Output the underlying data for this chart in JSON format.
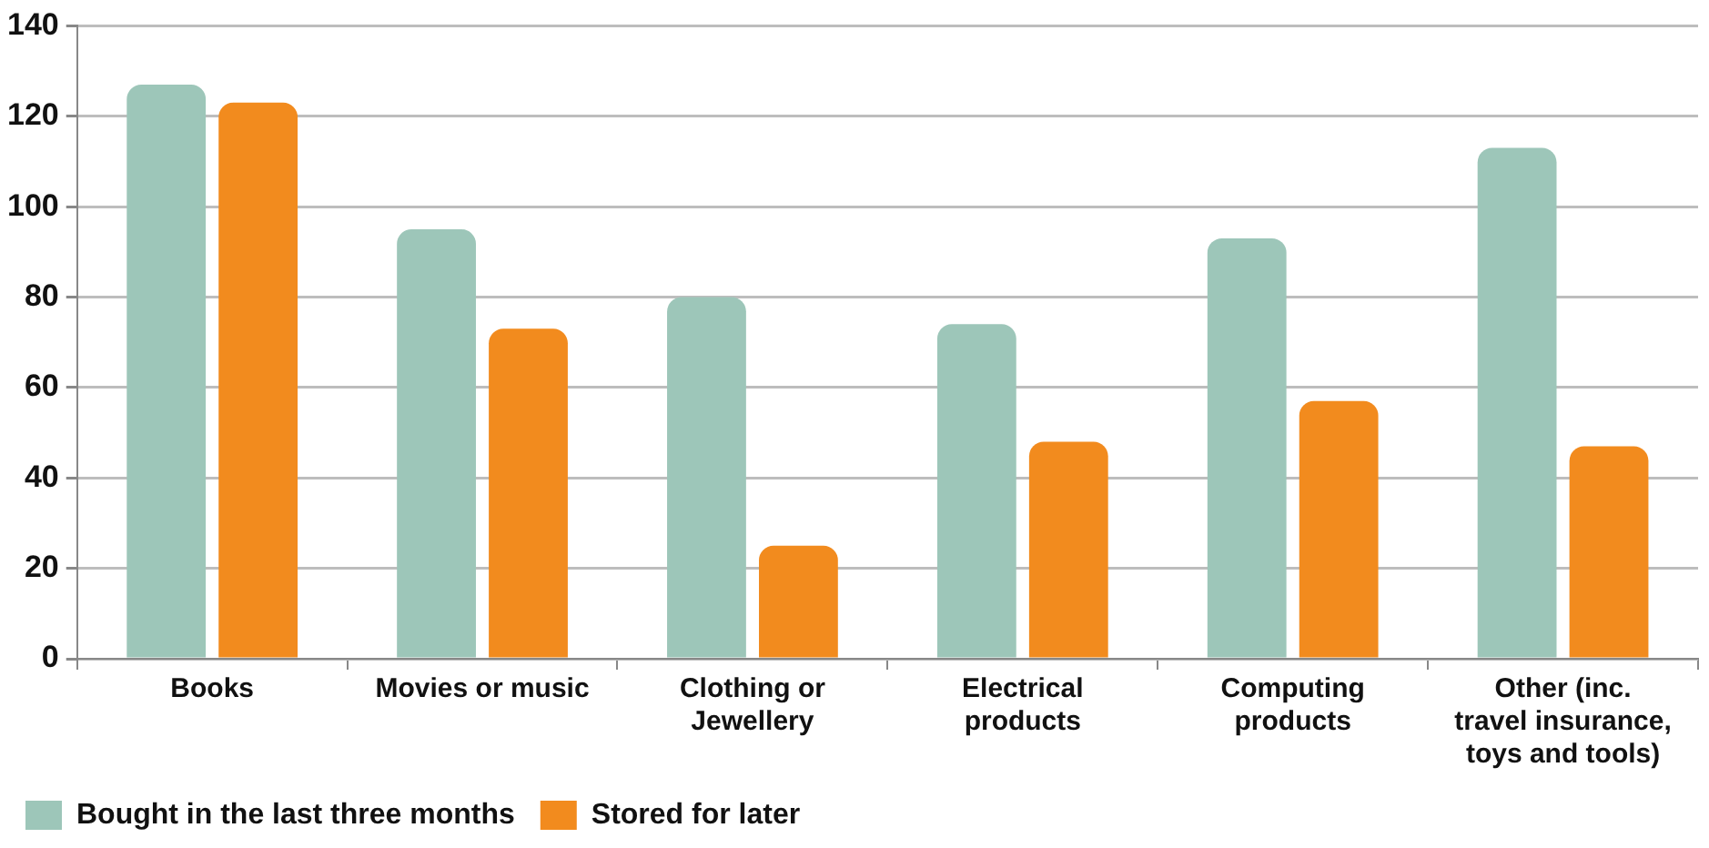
{
  "chart_data": {
    "type": "bar",
    "categories": [
      "Books",
      "Movies or music",
      "Clothing or Jewellery",
      "Electrical products",
      "Computing products",
      "Other (inc. travel insurance, toys and tools)"
    ],
    "series": [
      {
        "name": "Bought in the last three months",
        "color": "#9dc6b9",
        "values": [
          127,
          95,
          80,
          74,
          93,
          113
        ]
      },
      {
        "name": "Stored for later",
        "color": "#f28b1e",
        "values": [
          123,
          73,
          25,
          48,
          57,
          47
        ]
      }
    ],
    "ylim": [
      0,
      140
    ],
    "yticks": [
      0,
      20,
      40,
      60,
      80,
      100,
      120,
      140
    ],
    "grid": "y",
    "legend": "bottom left"
  }
}
